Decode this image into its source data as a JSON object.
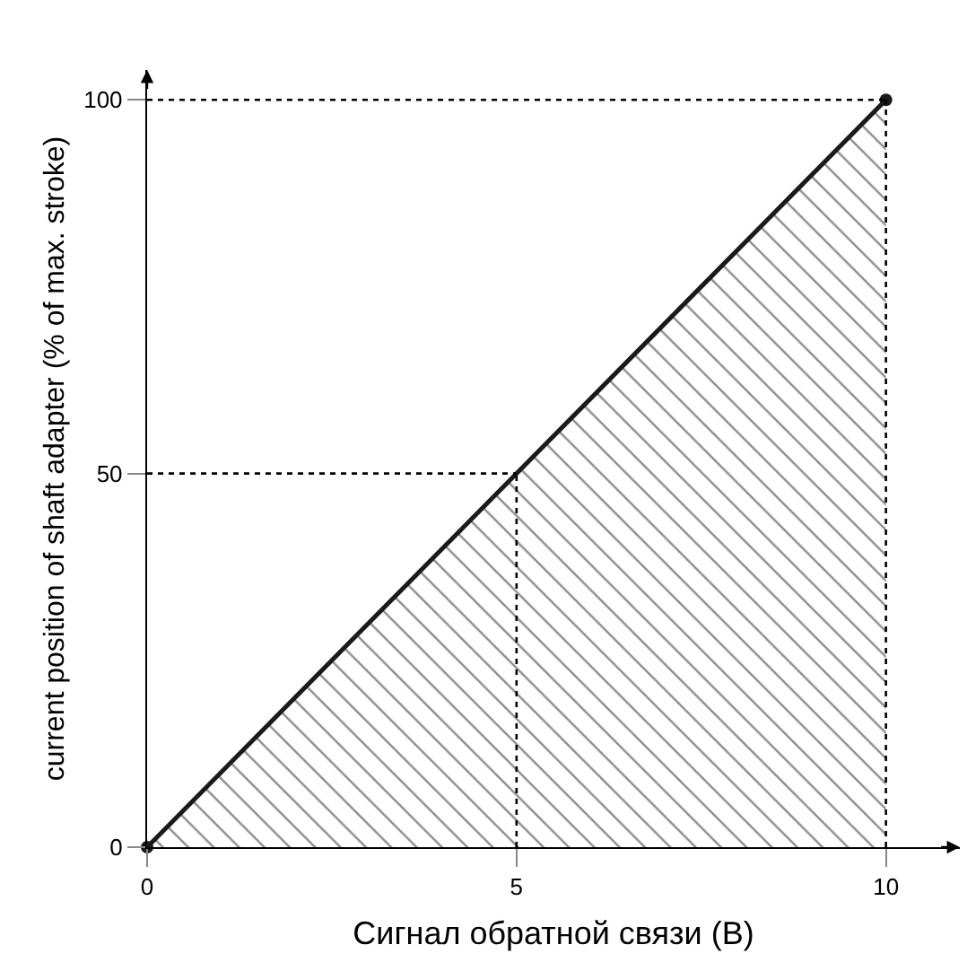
{
  "chart_data": {
    "type": "area",
    "xlabel": "Сигнал обратной связи (В)",
    "ylabel": "current position of shaft adapter (% of max. stroke)",
    "x": [
      0,
      10
    ],
    "series": [
      {
        "color": "#1a1a1a",
        "values": [
          0,
          100
        ]
      }
    ],
    "marker": "circle",
    "line_style": "solid",
    "xlim": [
      0,
      11
    ],
    "ylim": [
      0,
      104
    ],
    "xticks": [
      0,
      5,
      10
    ],
    "yticks": [
      0,
      50,
      100
    ],
    "ref_lines": [
      {
        "axis": "x",
        "value": 5,
        "line_style": "dotted"
      },
      {
        "axis": "y",
        "value": 50,
        "line_style": "dotted"
      },
      {
        "axis": "x",
        "value": 10,
        "line_style": "dotted"
      },
      {
        "axis": "y",
        "value": 100,
        "line_style": "dotted"
      }
    ]
  }
}
